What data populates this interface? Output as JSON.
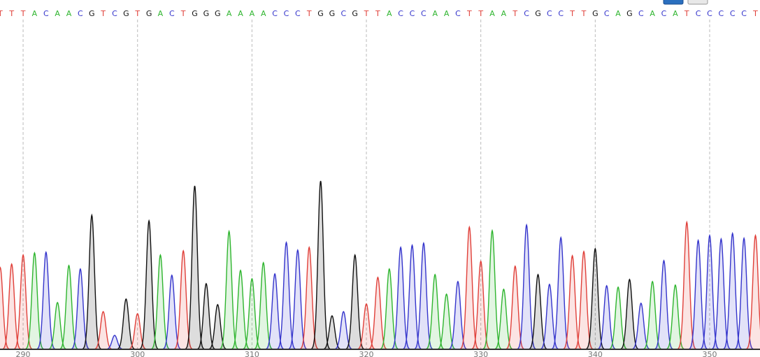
{
  "chart_data": {
    "type": "chromatogram",
    "bases": [
      "T",
      "T",
      "T",
      "A",
      "C",
      "A",
      "A",
      "C",
      "G",
      "T",
      "C",
      "G",
      "T",
      "G",
      "A",
      "C",
      "T",
      "G",
      "G",
      "G",
      "A",
      "A",
      "A",
      "A",
      "C",
      "C",
      "C",
      "T",
      "G",
      "G",
      "C",
      "G",
      "T",
      "T",
      "A",
      "C",
      "C",
      "C",
      "A",
      "A",
      "C",
      "T",
      "T",
      "A",
      "A",
      "T",
      "C",
      "G",
      "C",
      "C",
      "T",
      "T",
      "G",
      "C",
      "A",
      "G",
      "C",
      "A",
      "C",
      "A",
      "T",
      "C",
      "C",
      "C",
      "C",
      "C",
      "T"
    ],
    "x": [
      288,
      289,
      290,
      291,
      292,
      293,
      294,
      295,
      296,
      297,
      298,
      299,
      300,
      301,
      302,
      303,
      304,
      305,
      306,
      307,
      308,
      309,
      310,
      311,
      312,
      313,
      314,
      315,
      316,
      317,
      318,
      319,
      320,
      321,
      322,
      323,
      324,
      325,
      326,
      327,
      328,
      329,
      330,
      331,
      332,
      333,
      334,
      335,
      336,
      337,
      338,
      339,
      340,
      341,
      342,
      343,
      344,
      345,
      346,
      347,
      348,
      349,
      350,
      351,
      352,
      353,
      354
    ],
    "peaks": [
      117,
      122,
      135,
      138,
      139,
      67,
      120,
      115,
      192,
      54,
      20,
      72,
      51,
      184,
      135,
      106,
      141,
      234,
      94,
      64,
      169,
      113,
      101,
      124,
      108,
      153,
      142,
      146,
      241,
      48,
      54,
      135,
      65,
      103,
      115,
      146,
      149,
      152,
      107,
      79,
      97,
      175,
      126,
      170,
      86,
      119,
      178,
      107,
      93,
      160,
      134,
      140,
      144,
      91,
      89,
      100,
      66,
      97,
      127,
      92,
      182,
      156,
      163,
      158,
      166,
      159,
      163
    ],
    "colors": {
      "A": "#2fb52f",
      "C": "#3535cc",
      "G": "#111111",
      "T": "#e0403a"
    },
    "xlim": [
      287.98,
      354.4
    ],
    "xticks": [
      290,
      300,
      310,
      320,
      330,
      340,
      350
    ],
    "ylim": [
      0,
      250
    ],
    "grid": true
  }
}
